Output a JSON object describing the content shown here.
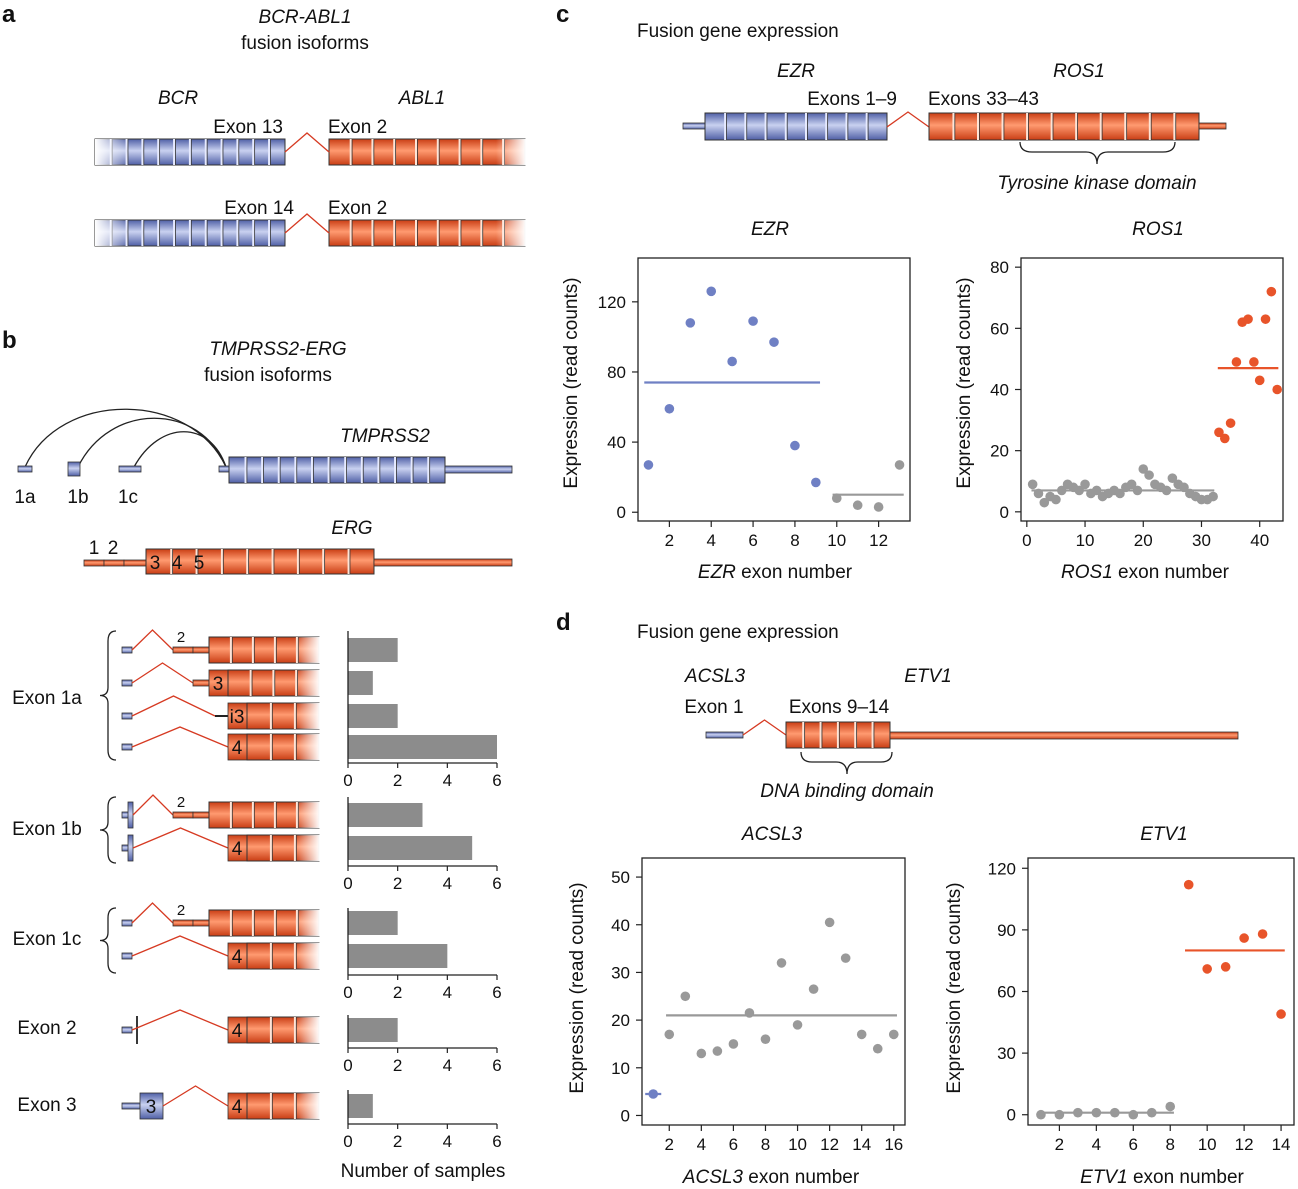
{
  "panel_labels": {
    "a": "a",
    "b": "b",
    "c": "c",
    "d": "d"
  },
  "panel_a": {
    "title_line1": "BCR-ABL1",
    "title_line2": "fusion isoforms",
    "gene_left": "BCR",
    "gene_right": "ABL1",
    "isoform1_left": "Exon 13",
    "isoform1_right": "Exon 2",
    "isoform2_left": "Exon 14",
    "isoform2_right": "Exon 2"
  },
  "panel_b": {
    "title_line1": "TMPRSS2-ERG",
    "title_line2": "fusion isoforms",
    "gene1": "TMPRSS2",
    "gene2": "ERG",
    "exon_1a": "1a",
    "exon_1b": "1b",
    "exon_1c": "1c",
    "erg_exons": [
      "1",
      "2",
      "3",
      "4",
      "5"
    ],
    "group_labels": [
      "Exon 1a",
      "Exon 1b",
      "Exon 1c",
      "Exon 2",
      "Exon 3"
    ],
    "xlabel": "Number of samples",
    "axis_ticks": [
      "0",
      "2",
      "4",
      "6"
    ],
    "xlim": [
      0,
      6
    ]
  },
  "panel_c": {
    "title": "Fusion gene expression",
    "gene_left": "EZR",
    "gene_right": "ROS1",
    "left_exons": "Exons 1–9",
    "right_exons": "Exons 33–43",
    "domain": "Tyrosine kinase domain",
    "plot_left_title": "EZR",
    "plot_right_title": "ROS1",
    "plot_left_xlabel_gene": "EZR",
    "plot_right_xlabel_gene": "ROS1",
    "xlabel_suffix": " exon number",
    "ylabel": "Expression (read counts)"
  },
  "panel_d": {
    "title": "Fusion gene expression",
    "gene_left": "ACSL3",
    "gene_right": "ETV1",
    "left_exons": "Exon 1",
    "right_exons": "Exons 9–14",
    "domain": "DNA binding domain",
    "plot_left_title": "ACSL3",
    "plot_right_title": "ETV1",
    "plot_left_xlabel_gene": "ACSL3",
    "plot_right_xlabel_gene": "ETV1",
    "xlabel_suffix": " exon number",
    "ylabel": "Expression (read counts)"
  },
  "colors": {
    "blue": "#6f80c4",
    "red": "#e8542a",
    "grey": "#999999",
    "bar": "#8c8c8c"
  },
  "chart_data": [
    {
      "id": "b-bars",
      "type": "bar",
      "orientation": "horizontal",
      "xlabel": "Number of samples",
      "xlim": [
        0,
        6
      ],
      "categories": [
        "Exon 1a (2)",
        "Exon 1a (3)",
        "Exon 1a (i3)",
        "Exon 1a (4)",
        "Exon 1b (2)",
        "Exon 1b (4)",
        "Exon 1c (2)",
        "Exon 1c (4)",
        "Exon 2 (4)",
        "Exon 3 (4)"
      ],
      "values": [
        2,
        1,
        2,
        6,
        3,
        5,
        2,
        4,
        2,
        1
      ]
    },
    {
      "id": "c-ezr",
      "type": "scatter",
      "title": "EZR",
      "xlabel": "EZR exon number",
      "ylabel": "Expression (read counts)",
      "xlim": [
        0.5,
        13.5
      ],
      "ylim": [
        -5,
        145
      ],
      "xticks": [
        2,
        4,
        6,
        8,
        10,
        12
      ],
      "yticks": [
        0,
        40,
        80,
        120
      ],
      "series": [
        {
          "color": "blue",
          "x": [
            1,
            2,
            3,
            4,
            5,
            6,
            7,
            8,
            9
          ],
          "y": [
            27,
            59,
            108,
            126,
            86,
            109,
            97,
            38,
            17
          ],
          "mean": 74
        },
        {
          "color": "grey",
          "x": [
            10,
            11,
            12,
            13
          ],
          "y": [
            8,
            4,
            3,
            27
          ],
          "mean": 10
        }
      ]
    },
    {
      "id": "c-ros1",
      "type": "scatter",
      "title": "ROS1",
      "xlabel": "ROS1 exon number",
      "ylabel": "Expression (read counts)",
      "xlim": [
        -1,
        44
      ],
      "ylim": [
        -3,
        83
      ],
      "xticks": [
        0,
        10,
        20,
        30,
        40
      ],
      "yticks": [
        0,
        20,
        40,
        60,
        80
      ],
      "series": [
        {
          "color": "grey",
          "x": [
            1,
            2,
            3,
            4,
            5,
            6,
            7,
            8,
            9,
            10,
            11,
            12,
            13,
            14,
            15,
            16,
            17,
            18,
            19,
            20,
            21,
            22,
            23,
            24,
            25,
            26,
            27,
            28,
            29,
            30,
            31,
            32
          ],
          "y": [
            9,
            6,
            3,
            5,
            4,
            7,
            9,
            8,
            7,
            9,
            6,
            7,
            5,
            6,
            7,
            6,
            8,
            9,
            7,
            14,
            12,
            9,
            8,
            7,
            11,
            9,
            8,
            6,
            5,
            4,
            4,
            5
          ],
          "mean": 7
        },
        {
          "color": "red",
          "x": [
            33,
            34,
            35,
            36,
            37,
            38,
            39,
            40,
            41,
            42,
            43
          ],
          "y": [
            26,
            24,
            29,
            49,
            62,
            63,
            49,
            43,
            63,
            72,
            40
          ],
          "mean": 47
        }
      ]
    },
    {
      "id": "d-acsl3",
      "type": "scatter",
      "title": "ACSL3",
      "xlabel": "ACSL3 exon number",
      "ylabel": "Expression (read counts)",
      "xlim": [
        0.3,
        16.7
      ],
      "ylim": [
        -2,
        54
      ],
      "xticks": [
        2,
        4,
        6,
        8,
        10,
        12,
        14,
        16
      ],
      "yticks": [
        0,
        10,
        20,
        30,
        40,
        50
      ],
      "series": [
        {
          "color": "blue",
          "x": [
            1
          ],
          "y": [
            4.5
          ],
          "mean": 4.5
        },
        {
          "color": "grey",
          "x": [
            2,
            3,
            4,
            5,
            6,
            7,
            8,
            9,
            10,
            11,
            12,
            13,
            14,
            15,
            16
          ],
          "y": [
            17,
            25,
            13,
            13.5,
            15,
            21.5,
            16,
            32,
            19,
            26.5,
            40.5,
            33,
            17,
            14,
            17
          ],
          "mean": 21
        }
      ]
    },
    {
      "id": "d-etv1",
      "type": "scatter",
      "title": "ETV1",
      "xlabel": "ETV1 exon number",
      "ylabel": "Expression (read counts)",
      "xlim": [
        0.3,
        14.7
      ],
      "ylim": [
        -5,
        125
      ],
      "xticks": [
        2,
        4,
        6,
        8,
        10,
        12,
        14
      ],
      "yticks": [
        0,
        30,
        60,
        90,
        120
      ],
      "series": [
        {
          "color": "grey",
          "x": [
            1,
            2,
            3,
            4,
            5,
            6,
            7,
            8
          ],
          "y": [
            0,
            0,
            1,
            1,
            1,
            0,
            1,
            4
          ],
          "mean": 1
        },
        {
          "color": "red",
          "x": [
            9,
            10,
            11,
            12,
            13,
            14
          ],
          "y": [
            112,
            71,
            72,
            86,
            88,
            49
          ],
          "mean": 80
        }
      ]
    }
  ]
}
